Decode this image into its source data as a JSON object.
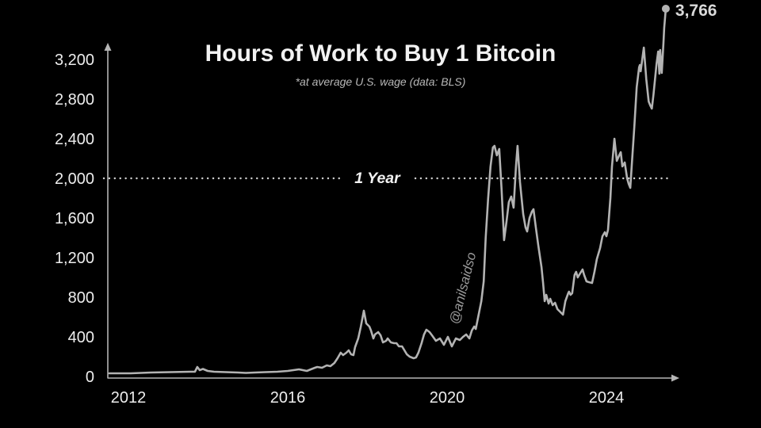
{
  "header": {
    "title": "Hours of Work to Buy 1 Bitcoin",
    "subtitle": "*at average U.S. wage (data: BLS)"
  },
  "watermark": {
    "handle": "@anilsaidso"
  },
  "colors": {
    "background": "#000000",
    "title": "#f2f2f2",
    "subtitle": "#b8b8b8",
    "axis": "#b5b5b5",
    "tick_label": "#ededed",
    "line": "#b3b3b3",
    "dotted": "#cfcfcf",
    "threshold_label": "#f0f0f0",
    "watermark": "#9a9a9a",
    "endpoint_dot": "#b3b3b3",
    "endpoint_label": "#d9d9d9"
  },
  "chart_data": {
    "type": "line",
    "title": "Hours of Work to Buy 1 Bitcoin",
    "subtitle": "*at average U.S. wage (data: BLS)",
    "xlabel": "",
    "ylabel": "",
    "grid": false,
    "legend": false,
    "xlim": [
      2011.4,
      2025.8
    ],
    "ylim": [
      0,
      3400
    ],
    "xticks": [
      2012,
      2016,
      2020,
      2024
    ],
    "xtick_labels": [
      "2012",
      "2016",
      "2020",
      "2024"
    ],
    "yticks": [
      0,
      400,
      800,
      1200,
      1600,
      2000,
      2400,
      2800,
      3200
    ],
    "ytick_labels": [
      "0",
      "400",
      "800",
      "1,200",
      "1,600",
      "2,000",
      "2,400",
      "2,800",
      "3,200"
    ],
    "threshold": {
      "value": 2000,
      "label": "1 Year"
    },
    "endpoint_label": "3,766",
    "endpoint_value": 3766,
    "series": [
      {
        "name": "hours-of-work-to-buy-1-bitcoin",
        "points": [
          [
            2011.52,
            32
          ],
          [
            2012.06,
            32
          ],
          [
            2012.56,
            40
          ],
          [
            2013.05,
            44
          ],
          [
            2013.55,
            48
          ],
          [
            2013.67,
            48
          ],
          [
            2013.73,
            96
          ],
          [
            2013.79,
            64
          ],
          [
            2013.87,
            76
          ],
          [
            2013.99,
            56
          ],
          [
            2014.15,
            48
          ],
          [
            2014.45,
            44
          ],
          [
            2014.75,
            40
          ],
          [
            2014.95,
            36
          ],
          [
            2015.18,
            40
          ],
          [
            2015.44,
            44
          ],
          [
            2015.74,
            48
          ],
          [
            2016.0,
            56
          ],
          [
            2016.14,
            64
          ],
          [
            2016.28,
            72
          ],
          [
            2016.38,
            64
          ],
          [
            2016.48,
            56
          ],
          [
            2016.58,
            72
          ],
          [
            2016.68,
            88
          ],
          [
            2016.74,
            96
          ],
          [
            2016.86,
            88
          ],
          [
            2016.98,
            112
          ],
          [
            2017.07,
            104
          ],
          [
            2017.17,
            136
          ],
          [
            2017.25,
            184
          ],
          [
            2017.33,
            240
          ],
          [
            2017.39,
            216
          ],
          [
            2017.47,
            240
          ],
          [
            2017.53,
            264
          ],
          [
            2017.59,
            224
          ],
          [
            2017.65,
            216
          ],
          [
            2017.69,
            296
          ],
          [
            2017.77,
            384
          ],
          [
            2017.83,
            496
          ],
          [
            2017.91,
            664
          ],
          [
            2017.97,
            536
          ],
          [
            2018.05,
            504
          ],
          [
            2018.09,
            464
          ],
          [
            2018.15,
            384
          ],
          [
            2018.19,
            424
          ],
          [
            2018.27,
            448
          ],
          [
            2018.33,
            416
          ],
          [
            2018.39,
            344
          ],
          [
            2018.47,
            360
          ],
          [
            2018.51,
            384
          ],
          [
            2018.59,
            344
          ],
          [
            2018.67,
            336
          ],
          [
            2018.73,
            336
          ],
          [
            2018.79,
            304
          ],
          [
            2018.87,
            304
          ],
          [
            2018.93,
            264
          ],
          [
            2018.99,
            224
          ],
          [
            2019.06,
            200
          ],
          [
            2019.16,
            184
          ],
          [
            2019.22,
            192
          ],
          [
            2019.28,
            240
          ],
          [
            2019.36,
            336
          ],
          [
            2019.42,
            424
          ],
          [
            2019.48,
            472
          ],
          [
            2019.56,
            448
          ],
          [
            2019.62,
            416
          ],
          [
            2019.72,
            360
          ],
          [
            2019.82,
            384
          ],
          [
            2019.92,
            320
          ],
          [
            2020.02,
            400
          ],
          [
            2020.12,
            304
          ],
          [
            2020.22,
            384
          ],
          [
            2020.32,
            368
          ],
          [
            2020.4,
            400
          ],
          [
            2020.48,
            424
          ],
          [
            2020.56,
            384
          ],
          [
            2020.62,
            464
          ],
          [
            2020.68,
            504
          ],
          [
            2020.72,
            480
          ],
          [
            2020.78,
            600
          ],
          [
            2020.86,
            760
          ],
          [
            2020.92,
            960
          ],
          [
            2020.97,
            1400
          ],
          [
            2021.03,
            1800
          ],
          [
            2021.09,
            2120
          ],
          [
            2021.15,
            2312
          ],
          [
            2021.19,
            2328
          ],
          [
            2021.25,
            2232
          ],
          [
            2021.31,
            2296
          ],
          [
            2021.37,
            1880
          ],
          [
            2021.43,
            1376
          ],
          [
            2021.49,
            1560
          ],
          [
            2021.55,
            1760
          ],
          [
            2021.61,
            1816
          ],
          [
            2021.67,
            1704
          ],
          [
            2021.73,
            2120
          ],
          [
            2021.77,
            2328
          ],
          [
            2021.83,
            1960
          ],
          [
            2021.91,
            1640
          ],
          [
            2021.97,
            1504
          ],
          [
            2022.01,
            1464
          ],
          [
            2022.07,
            1600
          ],
          [
            2022.13,
            1664
          ],
          [
            2022.17,
            1688
          ],
          [
            2022.23,
            1496
          ],
          [
            2022.29,
            1320
          ],
          [
            2022.37,
            1104
          ],
          [
            2022.41,
            944
          ],
          [
            2022.45,
            760
          ],
          [
            2022.49,
            824
          ],
          [
            2022.55,
            736
          ],
          [
            2022.59,
            784
          ],
          [
            2022.65,
            720
          ],
          [
            2022.71,
            744
          ],
          [
            2022.77,
            680
          ],
          [
            2022.85,
            648
          ],
          [
            2022.91,
            624
          ],
          [
            2022.97,
            760
          ],
          [
            2023.04,
            840
          ],
          [
            2023.06,
            856
          ],
          [
            2023.1,
            824
          ],
          [
            2023.14,
            840
          ],
          [
            2023.2,
            1024
          ],
          [
            2023.24,
            1056
          ],
          [
            2023.28,
            1000
          ],
          [
            2023.34,
            1040
          ],
          [
            2023.4,
            1080
          ],
          [
            2023.44,
            1024
          ],
          [
            2023.5,
            960
          ],
          [
            2023.56,
            952
          ],
          [
            2023.64,
            944
          ],
          [
            2023.7,
            1056
          ],
          [
            2023.76,
            1184
          ],
          [
            2023.84,
            1296
          ],
          [
            2023.9,
            1416
          ],
          [
            2023.96,
            1456
          ],
          [
            2024.0,
            1416
          ],
          [
            2024.04,
            1480
          ],
          [
            2024.1,
            1800
          ],
          [
            2024.14,
            2120
          ],
          [
            2024.2,
            2400
          ],
          [
            2024.26,
            2176
          ],
          [
            2024.32,
            2232
          ],
          [
            2024.36,
            2264
          ],
          [
            2024.4,
            2120
          ],
          [
            2024.46,
            2160
          ],
          [
            2024.52,
            2000
          ],
          [
            2024.56,
            1944
          ],
          [
            2024.6,
            1904
          ],
          [
            2024.66,
            2280
          ],
          [
            2024.7,
            2520
          ],
          [
            2024.76,
            2920
          ],
          [
            2024.82,
            3120
          ],
          [
            2024.84,
            3144
          ],
          [
            2024.86,
            3080
          ],
          [
            2024.9,
            3200
          ],
          [
            2024.94,
            3320
          ],
          [
            2025.0,
            3000
          ],
          [
            2025.06,
            2776
          ],
          [
            2025.1,
            2736
          ],
          [
            2025.14,
            2704
          ],
          [
            2025.18,
            2840
          ],
          [
            2025.22,
            3000
          ],
          [
            2025.26,
            3160
          ],
          [
            2025.3,
            3280
          ],
          [
            2025.33,
            3056
          ],
          [
            2025.35,
            3296
          ],
          [
            2025.39,
            3064
          ],
          [
            2025.43,
            3360
          ],
          [
            2025.45,
            3520
          ],
          [
            2025.49,
            3766
          ]
        ]
      }
    ]
  }
}
